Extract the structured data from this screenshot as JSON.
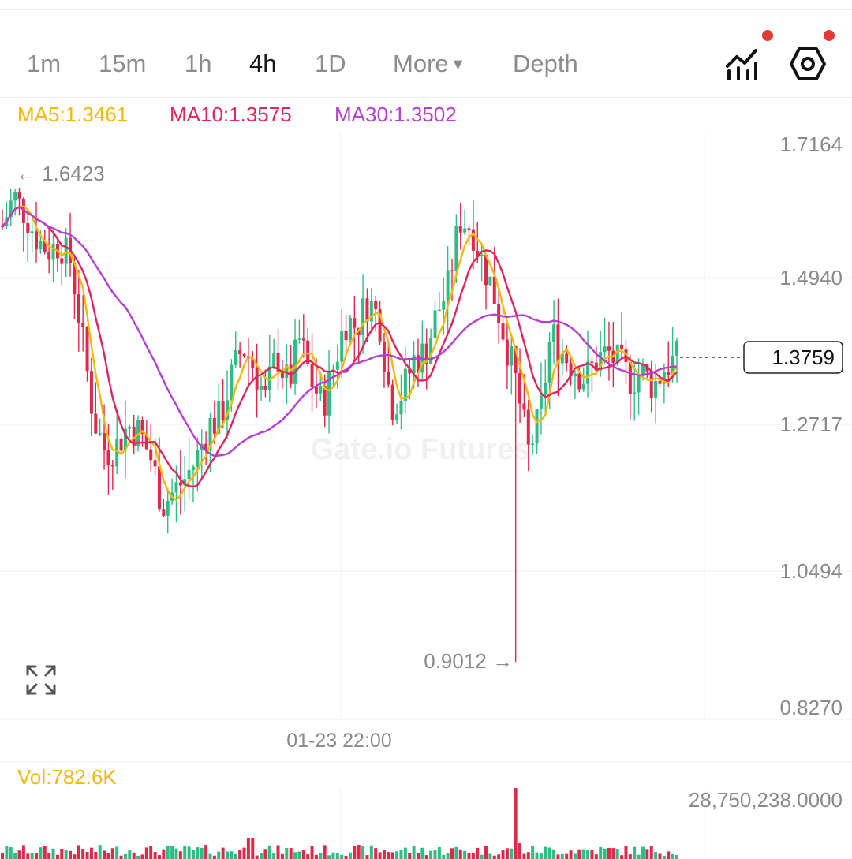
{
  "tabs": [
    {
      "label": "1m",
      "active": false
    },
    {
      "label": "15m",
      "active": false
    },
    {
      "label": "1h",
      "active": false
    },
    {
      "label": "4h",
      "active": true
    },
    {
      "label": "1D",
      "active": false
    },
    {
      "label": "More",
      "active": false
    },
    {
      "label": "Depth",
      "active": false
    }
  ],
  "toolbar": {
    "indicator_icon": "chart-indicator-icon",
    "settings_icon": "hexagon-settings-icon",
    "badge_color": "#e53935"
  },
  "ma": {
    "ma5": "MA5:1.3461",
    "ma10": "MA10:1.3575",
    "ma30": "MA30:1.3502",
    "ma5_color": "#f0b90b",
    "ma10_color": "#e0245e",
    "ma30_color": "#b63fd1"
  },
  "watermark": "Gate.io Futures",
  "volume": {
    "label": "Vol:782.6K",
    "max_label": "28,750,238.0000"
  },
  "chart_data": {
    "type": "candlestick",
    "interval": "4h",
    "y_ticks": [
      "1.7164",
      "1.4940",
      "1.2717",
      "1.0494",
      "0.8270"
    ],
    "y_tick_values": [
      1.7164,
      1.494,
      1.2717,
      1.0494,
      0.827
    ],
    "ylim": [
      0.827,
      1.7164
    ],
    "x_tick_labels": [
      "01-23 22:00"
    ],
    "last_price": "1.3759",
    "high_marker": "← 1.6423",
    "low_marker": "0.9012 →",
    "up_color": "#2ebd85",
    "down_color": "#e0294a",
    "ma_colors": {
      "ma5": "#f0b90b",
      "ma10": "#e0245e",
      "ma30": "#b63fd1"
    },
    "close_path": [
      1.58,
      1.63,
      1.6,
      1.56,
      1.54,
      1.55,
      1.52,
      1.4,
      1.28,
      1.23,
      1.24,
      1.27,
      1.26,
      1.22,
      1.15,
      1.17,
      1.19,
      1.22,
      1.27,
      1.28,
      1.34,
      1.39,
      1.36,
      1.31,
      1.38,
      1.33,
      1.4,
      1.34,
      1.3,
      1.36,
      1.43,
      1.42,
      1.46,
      1.43,
      1.3,
      1.32,
      1.37,
      1.38,
      1.44,
      1.48,
      1.59,
      1.58,
      1.52,
      1.47,
      1.4,
      1.33,
      1.23,
      1.28,
      1.41,
      1.38,
      1.36,
      1.34,
      1.37,
      1.38,
      1.36,
      1.34,
      1.35,
      1.33,
      1.36,
      1.37
    ]
  }
}
